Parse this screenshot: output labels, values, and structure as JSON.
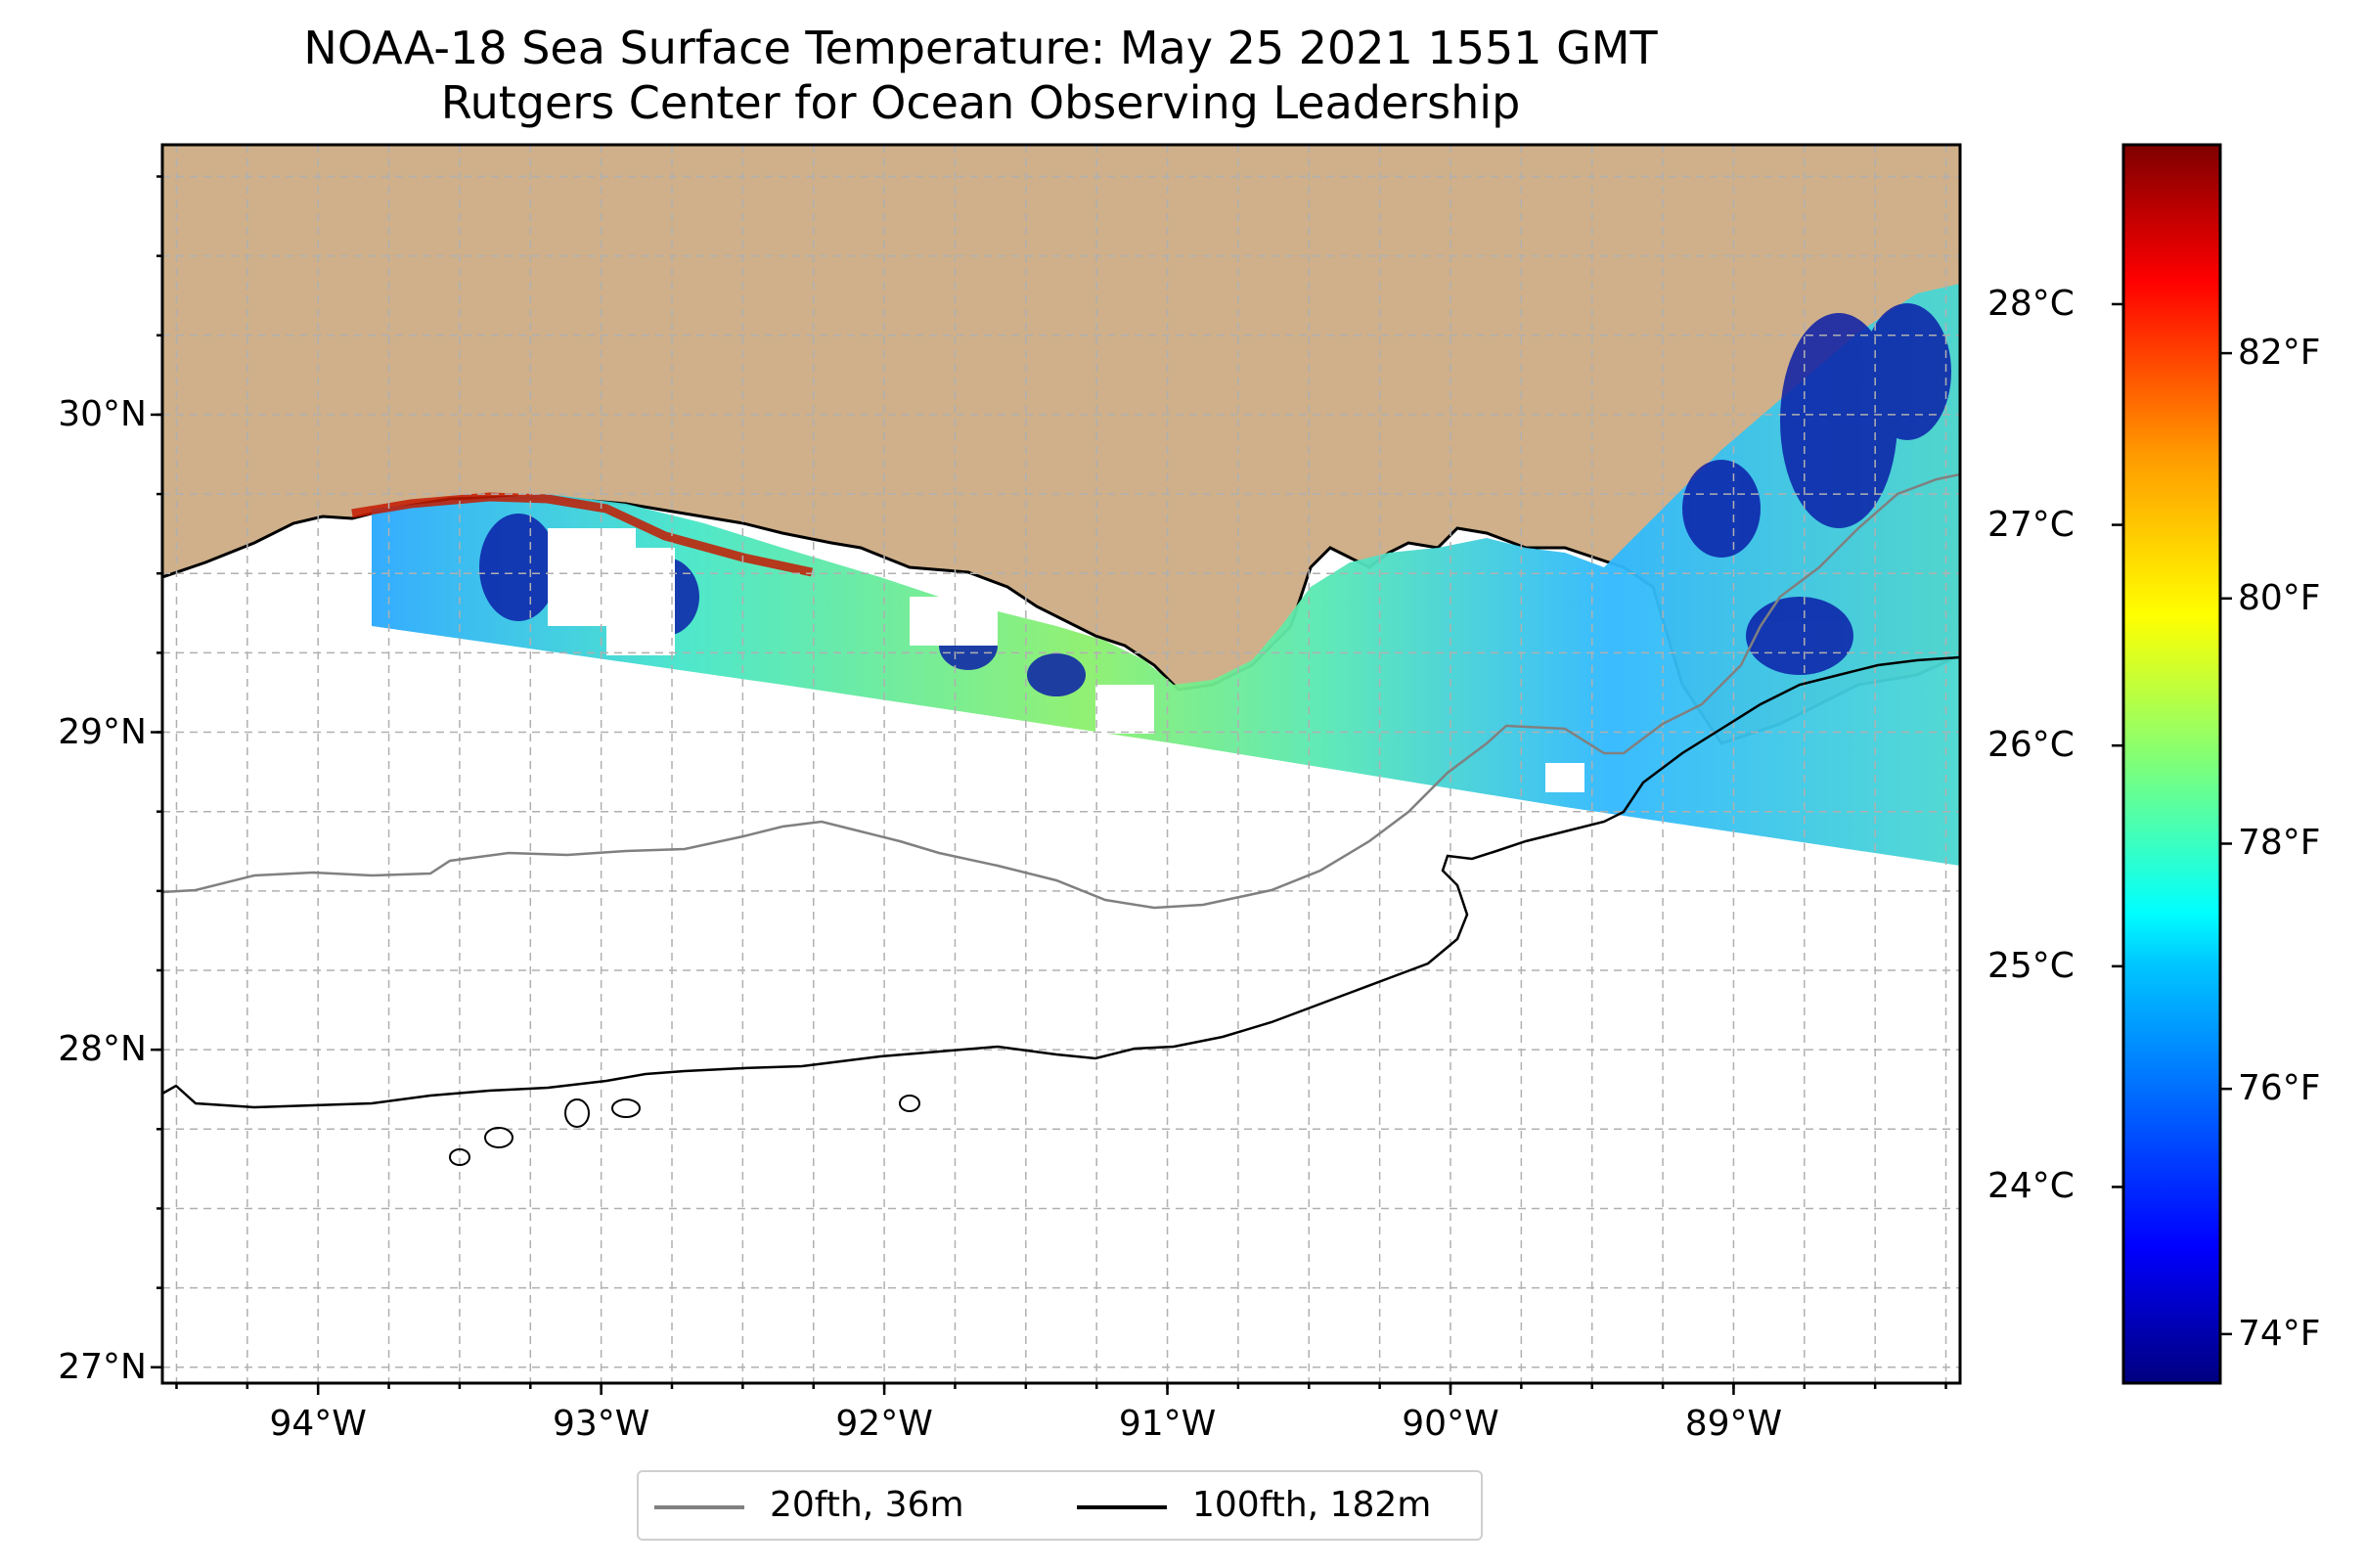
{
  "title": {
    "line1": "NOAA-18 Sea Surface Temperature: May 25 2021 1551 GMT",
    "line2": "Rutgers Center for Ocean Observing Leadership"
  },
  "map": {
    "lon_range": [
      -94.55,
      -88.2
    ],
    "lat_range": [
      26.95,
      30.85
    ],
    "land_color": "#cfb08a",
    "coast_color": "#000000",
    "grid": true,
    "lat_ticks": [
      {
        "value": 30,
        "label": "30°N"
      },
      {
        "value": 29,
        "label": "29°N"
      },
      {
        "value": 28,
        "label": "28°N"
      },
      {
        "value": 27,
        "label": "27°N"
      }
    ],
    "lon_ticks": [
      {
        "value": -94,
        "label": "94°W"
      },
      {
        "value": -93,
        "label": "93°W"
      },
      {
        "value": -92,
        "label": "92°W"
      },
      {
        "value": -91,
        "label": "91°W"
      },
      {
        "value": -90,
        "label": "90°W"
      },
      {
        "value": -89,
        "label": "89°W"
      }
    ]
  },
  "colorbar": {
    "colormap": "jet",
    "fahrenheit_range": [
      73.6,
      83.7
    ],
    "celsius_ticks": [
      {
        "value": 24,
        "label": "24°C"
      },
      {
        "value": 25,
        "label": "25°C"
      },
      {
        "value": 26,
        "label": "26°C"
      },
      {
        "value": 27,
        "label": "27°C"
      },
      {
        "value": 28,
        "label": "28°C"
      }
    ],
    "fahrenheit_ticks": [
      {
        "value": 74,
        "label": "74°F"
      },
      {
        "value": 76,
        "label": "76°F"
      },
      {
        "value": 78,
        "label": "78°F"
      },
      {
        "value": 80,
        "label": "80°F"
      },
      {
        "value": 82,
        "label": "82°F"
      }
    ]
  },
  "legend": {
    "items": [
      {
        "label": "20fth, 36m",
        "color": "#808080"
      },
      {
        "label": "100fth, 182m",
        "color": "#000000"
      }
    ]
  },
  "chart_data": {
    "type": "heatmap",
    "title": "NOAA-18 Sea Surface Temperature: May 25 2021 1551 GMT\nRutgers Center for Ocean Observing Leadership",
    "x_ticks": [
      "94°W",
      "93°W",
      "92°W",
      "91°W",
      "90°W",
      "89°W"
    ],
    "y_ticks": [
      "30°N",
      "29°N",
      "28°N",
      "27°N"
    ],
    "xlim": [
      -94.55,
      -88.2
    ],
    "ylim": [
      26.95,
      30.85
    ],
    "value_range_F": [
      73.6,
      83.7
    ],
    "grid": true,
    "legend_position": "bottom-center",
    "series": [
      {
        "name": "20fth, 36m"
      },
      {
        "name": "100fth, 182m"
      }
    ]
  }
}
